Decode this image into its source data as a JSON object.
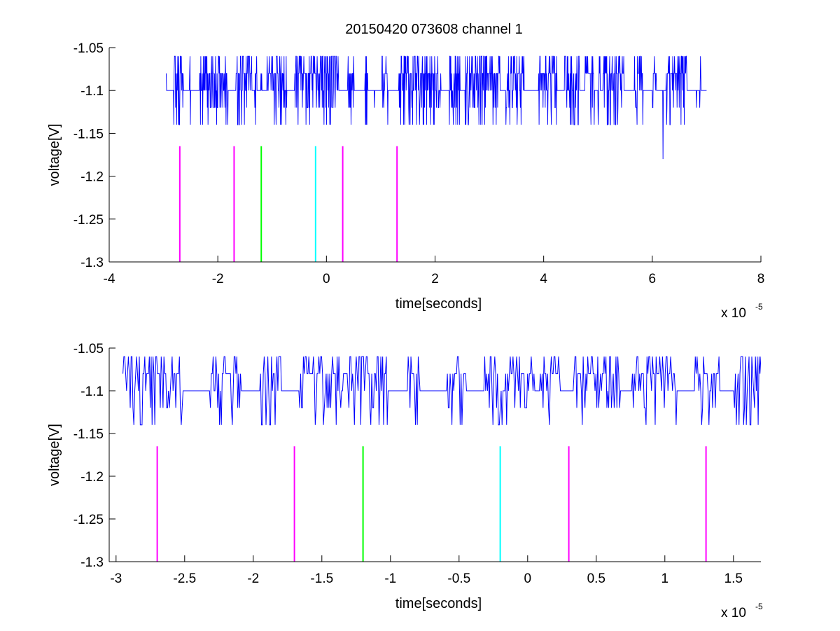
{
  "figure": {
    "title": "20150420 073608 channel 1"
  },
  "chart_data": [
    {
      "type": "line",
      "title": "20150420 073608 channel 1",
      "xlabel": "time[seconds]",
      "ylabel": "voltage[V]",
      "x_exponent_label": "x 10",
      "x_exponent": "-5",
      "x_unit_scale": 1e-05,
      "xlim": [
        -4,
        8
      ],
      "ylim": [
        -1.3,
        -1.05
      ],
      "xticks": [
        -4,
        -2,
        0,
        2,
        4,
        6,
        8
      ],
      "xtick_labels": [
        "-4",
        "-2",
        "0",
        "2",
        "4",
        "6",
        "8"
      ],
      "yticks": [
        -1.3,
        -1.25,
        -1.2,
        -1.15,
        -1.1,
        -1.05
      ],
      "ytick_labels": [
        "-1.3",
        "-1.25",
        "-1.2",
        "-1.15",
        "-1.1",
        "-1.05"
      ],
      "grid": false,
      "signal": {
        "color": "#0000ff",
        "x_start": -2.95,
        "x_end": 7.0,
        "baseline": -1.1,
        "levels": [
          -1.06,
          -1.08,
          -1.1,
          -1.12,
          -1.14
        ],
        "outlier": {
          "x": 6.2,
          "y": -1.18
        },
        "description_points": 1500
      },
      "markers": [
        {
          "x": -2.7,
          "color": "#ff00ff",
          "y_top": -1.165,
          "y_bottom": -1.3
        },
        {
          "x": -1.7,
          "color": "#ff00ff",
          "y_top": -1.165,
          "y_bottom": -1.3
        },
        {
          "x": -1.2,
          "color": "#00ff00",
          "y_top": -1.165,
          "y_bottom": -1.3
        },
        {
          "x": -0.2,
          "color": "#00ffff",
          "y_top": -1.165,
          "y_bottom": -1.3
        },
        {
          "x": 0.3,
          "color": "#ff00ff",
          "y_top": -1.165,
          "y_bottom": -1.3
        },
        {
          "x": 1.3,
          "color": "#ff00ff",
          "y_top": -1.165,
          "y_bottom": -1.3
        }
      ]
    },
    {
      "type": "line",
      "title": "",
      "xlabel": "time[seconds]",
      "ylabel": "voltage[V]",
      "x_exponent_label": "x 10",
      "x_exponent": "-5",
      "x_unit_scale": 1e-05,
      "xlim": [
        -3.05,
        1.7
      ],
      "ylim": [
        -1.3,
        -1.05
      ],
      "xticks": [
        -3,
        -2.5,
        -2,
        -1.5,
        -1,
        -0.5,
        0,
        0.5,
        1,
        1.5
      ],
      "xtick_labels": [
        "-3",
        "-2.5",
        "-2",
        "-1.5",
        "-1",
        "-0.5",
        "0",
        "0.5",
        "1",
        "1.5"
      ],
      "yticks": [
        -1.3,
        -1.25,
        -1.2,
        -1.15,
        -1.1,
        -1.05
      ],
      "ytick_labels": [
        "-1.3",
        "-1.25",
        "-1.2",
        "-1.15",
        "-1.1",
        "-1.05"
      ],
      "grid": false,
      "signal": {
        "color": "#0000ff",
        "x_start": -2.95,
        "x_end": 1.7,
        "baseline": -1.1,
        "levels": [
          -1.06,
          -1.08,
          -1.1,
          -1.12,
          -1.14
        ],
        "description_points": 700
      },
      "markers": [
        {
          "x": -2.7,
          "color": "#ff00ff",
          "y_top": -1.165,
          "y_bottom": -1.3
        },
        {
          "x": -1.7,
          "color": "#ff00ff",
          "y_top": -1.165,
          "y_bottom": -1.3
        },
        {
          "x": -1.2,
          "color": "#00ff00",
          "y_top": -1.165,
          "y_bottom": -1.3
        },
        {
          "x": -0.2,
          "color": "#00ffff",
          "y_top": -1.165,
          "y_bottom": -1.3
        },
        {
          "x": 0.3,
          "color": "#ff00ff",
          "y_top": -1.165,
          "y_bottom": -1.3
        },
        {
          "x": 1.3,
          "color": "#ff00ff",
          "y_top": -1.165,
          "y_bottom": -1.3
        }
      ]
    }
  ]
}
